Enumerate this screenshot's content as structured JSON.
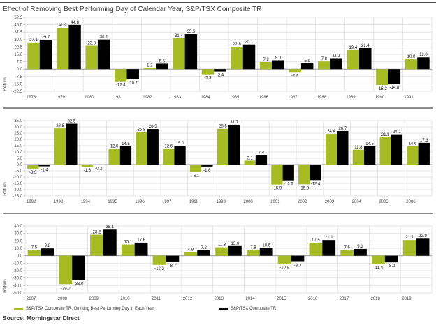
{
  "title": "Effect of Removing Best Performing Day of Calendar Year, S&P/TSX Composite TR",
  "source": "Source: Morningstar Direct",
  "colors": {
    "omitting_series": "#a6bc22",
    "composite_series": "#000000",
    "gridline": "#e4e4e4",
    "zero_line": "#a0a0a0",
    "separator": "#8a8a8a"
  },
  "legend": [
    {
      "label": "S&P/TSX Composite TR, Omitting Best Performing Day in Each Year",
      "color": "#a6bc22"
    },
    {
      "label": "S&P/TSX Composite TR",
      "color": "#000000"
    }
  ],
  "chart_data": [
    {
      "type": "bar",
      "categories": [
        "1978",
        "1979",
        "1980",
        "1981",
        "1982",
        "1983",
        "1984",
        "1985",
        "1986",
        "1987",
        "1988",
        "1989",
        "1990",
        "1991"
      ],
      "series": [
        {
          "name": "S&P/TSX Composite TR, Omitting Best Performing Day in Each Year",
          "values": [
            27.1,
            41.9,
            23.8,
            -12.4,
            1.2,
            31.4,
            -5.3,
            22.8,
            7.2,
            -2.9,
            7.8,
            19.4,
            -16.2,
            10.0
          ]
        },
        {
          "name": "S&P/TSX Composite TR",
          "values": [
            29.7,
            44.8,
            30.1,
            -10.2,
            5.5,
            35.5,
            -2.4,
            25.1,
            9.0,
            5.9,
            11.1,
            21.4,
            -14.8,
            12.0
          ]
        }
      ],
      "xlabel": "",
      "ylabel": "Return",
      "ylim": [
        -22.5,
        52.5
      ],
      "yticks": [
        52.5,
        45.0,
        37.5,
        30.0,
        22.5,
        15.0,
        7.5,
        0.0,
        -7.5,
        -15.0,
        -22.5
      ],
      "grid": true,
      "legend_position": "bottom"
    },
    {
      "type": "bar",
      "categories": [
        "1992",
        "1993",
        "1994",
        "1995",
        "1996",
        "1997",
        "1998",
        "1999",
        "2000",
        "2001",
        "2002",
        "2003",
        "2004",
        "2005",
        "2006"
      ],
      "series": [
        {
          "name": "S&P/TSX Composite TR, Omitting Best Performing Day in Each Year",
          "values": [
            -3.3,
            28.8,
            -1.8,
            12.5,
            25.8,
            12.6,
            -6.1,
            28.5,
            3.1,
            -15.9,
            -15.8,
            24.4,
            11.8,
            21.8,
            14.6
          ]
        },
        {
          "name": "S&P/TSX Composite TR",
          "values": [
            -1.4,
            32.5,
            -0.2,
            14.5,
            28.3,
            15.0,
            -1.6,
            31.7,
            7.4,
            -12.6,
            -12.4,
            26.7,
            14.5,
            24.1,
            17.3
          ]
        }
      ],
      "xlabel": "",
      "ylabel": "Return",
      "ylim": [
        -25.0,
        35.0
      ],
      "yticks": [
        35.0,
        30.0,
        25.0,
        20.0,
        15.0,
        10.0,
        5.0,
        0.0,
        -5.0,
        -10.0,
        -15.0,
        -20.0,
        -25.0
      ],
      "grid": true,
      "legend_position": "bottom"
    },
    {
      "type": "bar",
      "categories": [
        "2007",
        "2008",
        "2009",
        "2010",
        "2011",
        "2012",
        "2013",
        "2014",
        "2015",
        "2016",
        "2017",
        "2018",
        "2019"
      ],
      "series": [
        {
          "name": "S&P/TSX Composite TR, Omitting Best Performing Day in Each Year",
          "values": [
            7.5,
            -39.0,
            28.2,
            15.1,
            -12.3,
            4.9,
            11.3,
            7.8,
            -10.9,
            17.5,
            7.6,
            -11.4,
            21.1
          ]
        },
        {
          "name": "S&P/TSX Composite TR",
          "values": [
            9.8,
            -33.0,
            35.1,
            17.6,
            -8.7,
            7.2,
            13.0,
            10.6,
            -8.3,
            21.1,
            9.1,
            -8.9,
            22.9
          ]
        }
      ],
      "xlabel": "",
      "ylabel": "Return",
      "ylim": [
        -50.0,
        40.0
      ],
      "yticks": [
        40.0,
        30.0,
        20.0,
        10.0,
        0.0,
        -10.0,
        -20.0,
        -30.0,
        -40.0,
        -50.0
      ],
      "grid": true,
      "legend_position": "bottom"
    }
  ]
}
